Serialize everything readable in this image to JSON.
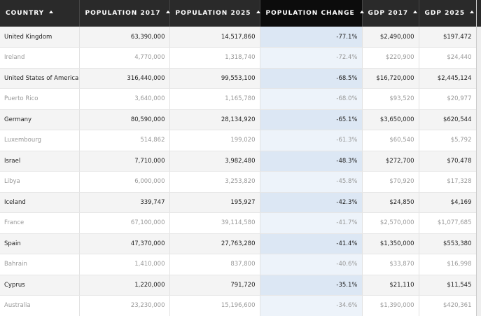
{
  "table": {
    "headers": [
      "COUNTRY",
      "POPULATION 2017",
      "POPULATION 2025",
      "POPULATION CHANGE",
      "GDP 2017",
      "GDP 2025"
    ],
    "rows": [
      [
        "United Kingdom",
        "63,390,000",
        "14,517,860",
        "-77.1%",
        "$2,490,000",
        "$197,472"
      ],
      [
        "Ireland",
        "4,770,000",
        "1,318,740",
        "-72.4%",
        "$220,900",
        "$24,440"
      ],
      [
        "United States of America",
        "316,440,000",
        "99,553,100",
        "-68.5%",
        "$16,720,000",
        "$2,445,124"
      ],
      [
        "Puerto Rico",
        "3,640,000",
        "1,165,780",
        "-68.0%",
        "$93,520",
        "$20,977"
      ],
      [
        "Germany",
        "80,590,000",
        "28,134,920",
        "-65.1%",
        "$3,650,000",
        "$620,544"
      ],
      [
        "Luxembourg",
        "514,862",
        "199,020",
        "-61.3%",
        "$60,540",
        "$5,792"
      ],
      [
        "Israel",
        "7,710,000",
        "3,982,480",
        "-48.3%",
        "$272,700",
        "$70,478"
      ],
      [
        "Libya",
        "6,000,000",
        "3,253,820",
        "-45.8%",
        "$70,920",
        "$17,328"
      ],
      [
        "Iceland",
        "339,747",
        "195,927",
        "-42.3%",
        "$24,850",
        "$4,169"
      ],
      [
        "France",
        "67,100,000",
        "39,114,580",
        "-41.7%",
        "$2,570,000",
        "$1,077,685"
      ],
      [
        "Spain",
        "47,370,000",
        "27,763,280",
        "-41.4%",
        "$1,350,000",
        "$553,380"
      ],
      [
        "Bahrain",
        "1,410,000",
        "837,800",
        "-40.6%",
        "$33,870",
        "$16,998"
      ],
      [
        "Cyprus",
        "1,220,000",
        "791,720",
        "-35.1%",
        "$21,110",
        "$11,545"
      ],
      [
        "Australia",
        "23,230,000",
        "15,196,600",
        "-34.6%",
        "$1,390,000",
        "$420,361"
      ]
    ]
  }
}
